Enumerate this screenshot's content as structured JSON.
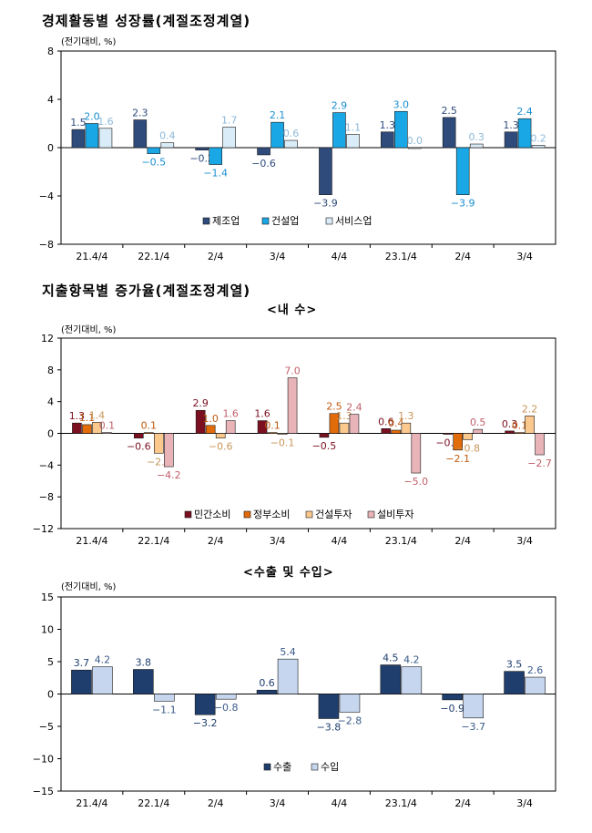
{
  "titles": {
    "section1": "경제활동별 성장률(계절조정계열)",
    "section2": "지출항목별 증가율(계절조정계열)",
    "sub_domestic": "<내  수>",
    "sub_trade": "<수출 및 수입>"
  },
  "colors": {
    "navy": "#2f4b7c",
    "cyan": "#1aa7e6",
    "lightblue": "#d9ecf7",
    "maroon": "#7a1020",
    "orange": "#e36c0a",
    "peach": "#fbc88e",
    "pink": "#e8b4b8",
    "export": "#1f3e6e",
    "import": "#c6d6ee"
  },
  "chart_data": [
    {
      "type": "bar",
      "unit_label": "(전기대비, %)",
      "categories": [
        "21.4/4",
        "22.1/4",
        "2/4",
        "3/4",
        "4/4",
        "23.1/4",
        "2/4",
        "3/4"
      ],
      "ylim": [
        -8,
        8
      ],
      "yticks": [
        8,
        4,
        0,
        -4,
        -8
      ],
      "ytick_labels": [
        "8",
        "4",
        "0",
        "−4",
        "−8"
      ],
      "legend_position": "bottom",
      "series": [
        {
          "name": "제조업",
          "color_key": "navy",
          "values": [
            1.5,
            2.3,
            -0.2,
            -0.6,
            -3.9,
            1.3,
            2.5,
            1.3
          ],
          "labels": [
            "1.5",
            "2.3",
            "−0.2",
            "−0.6",
            "−3.9",
            "1.3",
            "2.5",
            "1.3"
          ]
        },
        {
          "name": "건설업",
          "color_key": "cyan",
          "values": [
            2.0,
            -0.5,
            -1.4,
            2.1,
            2.9,
            3.0,
            -3.9,
            2.4
          ],
          "labels": [
            "2.0",
            "−0.5",
            "−1.4",
            "2.1",
            "2.9",
            "3.0",
            "−3.9",
            "2.4"
          ]
        },
        {
          "name": "서비스업",
          "color_key": "lightblue",
          "values": [
            1.6,
            0.4,
            1.7,
            0.6,
            1.1,
            0.0,
            0.3,
            0.2
          ],
          "labels": [
            "1.6",
            "0.4",
            "1.7",
            "0.6",
            "1.1",
            "0.0",
            "0.3",
            "0.2"
          ]
        }
      ]
    },
    {
      "type": "bar",
      "unit_label": "(전기대비, %)",
      "categories": [
        "21.4/4",
        "22.1/4",
        "2/4",
        "3/4",
        "4/4",
        "23.1/4",
        "2/4",
        "3/4"
      ],
      "ylim": [
        -12,
        12
      ],
      "yticks": [
        12,
        8,
        4,
        0,
        -4,
        -8,
        -12
      ],
      "ytick_labels": [
        "12",
        "8",
        "4",
        "0",
        "−4",
        "−8",
        "−12"
      ],
      "legend_position": "bottom",
      "series": [
        {
          "name": "민간소비",
          "color_key": "maroon",
          "values": [
            1.3,
            -0.6,
            2.9,
            1.6,
            -0.5,
            0.6,
            -0.1,
            0.3
          ],
          "labels": [
            "1.3",
            "−0.6",
            "2.9",
            "1.6",
            "−0.5",
            "0.6",
            "−0.1",
            "0.3"
          ]
        },
        {
          "name": "정부소비",
          "color_key": "orange",
          "values": [
            1.1,
            0.1,
            1.0,
            0.1,
            2.5,
            0.4,
            -2.1,
            0.1
          ],
          "labels": [
            "1.1",
            "0.1",
            "1.0",
            "0.1",
            "2.5",
            "0.4",
            "−2.1",
            "0.1"
          ]
        },
        {
          "name": "건설투자",
          "color_key": "peach",
          "values": [
            1.4,
            -2.5,
            -0.6,
            -0.1,
            1.3,
            1.3,
            -0.8,
            2.2
          ],
          "labels": [
            "1.4",
            "−2.5",
            "−0.6",
            "−0.1",
            "1.3",
            "1.3",
            "−0.8",
            "2.2"
          ]
        },
        {
          "name": "설비투자",
          "color_key": "pink",
          "values": [
            0.1,
            -4.2,
            1.6,
            7.0,
            2.4,
            -5.0,
            0.5,
            -2.7
          ],
          "labels": [
            "0.1",
            "−4.2",
            "1.6",
            "7.0",
            "2.4",
            "−5.0",
            "0.5",
            "−2.7"
          ]
        }
      ]
    },
    {
      "type": "bar",
      "unit_label": "(전기대비, %)",
      "categories": [
        "21.4/4",
        "22.1/4",
        "2/4",
        "3/4",
        "4/4",
        "23.1/4",
        "2/4",
        "3/4"
      ],
      "ylim": [
        -15,
        15
      ],
      "yticks": [
        15,
        10,
        5,
        0,
        -5,
        -10,
        -15
      ],
      "ytick_labels": [
        "15",
        "10",
        "5",
        "0",
        "−5",
        "−10",
        "−15"
      ],
      "legend_position": "bottom",
      "series": [
        {
          "name": "수출",
          "color_key": "export",
          "values": [
            3.7,
            3.8,
            -3.2,
            0.6,
            -3.8,
            4.5,
            -0.9,
            3.5
          ],
          "labels": [
            "3.7",
            "3.8",
            "−3.2",
            "0.6",
            "−3.8",
            "4.5",
            "−0.9",
            "3.5"
          ]
        },
        {
          "name": "수입",
          "color_key": "import",
          "values": [
            4.2,
            -1.1,
            -0.8,
            5.4,
            -2.8,
            4.2,
            -3.7,
            2.6
          ],
          "labels": [
            "4.2",
            "−1.1",
            "−0.8",
            "5.4",
            "−2.8",
            "4.2",
            "−3.7",
            "2.6"
          ]
        }
      ]
    }
  ]
}
